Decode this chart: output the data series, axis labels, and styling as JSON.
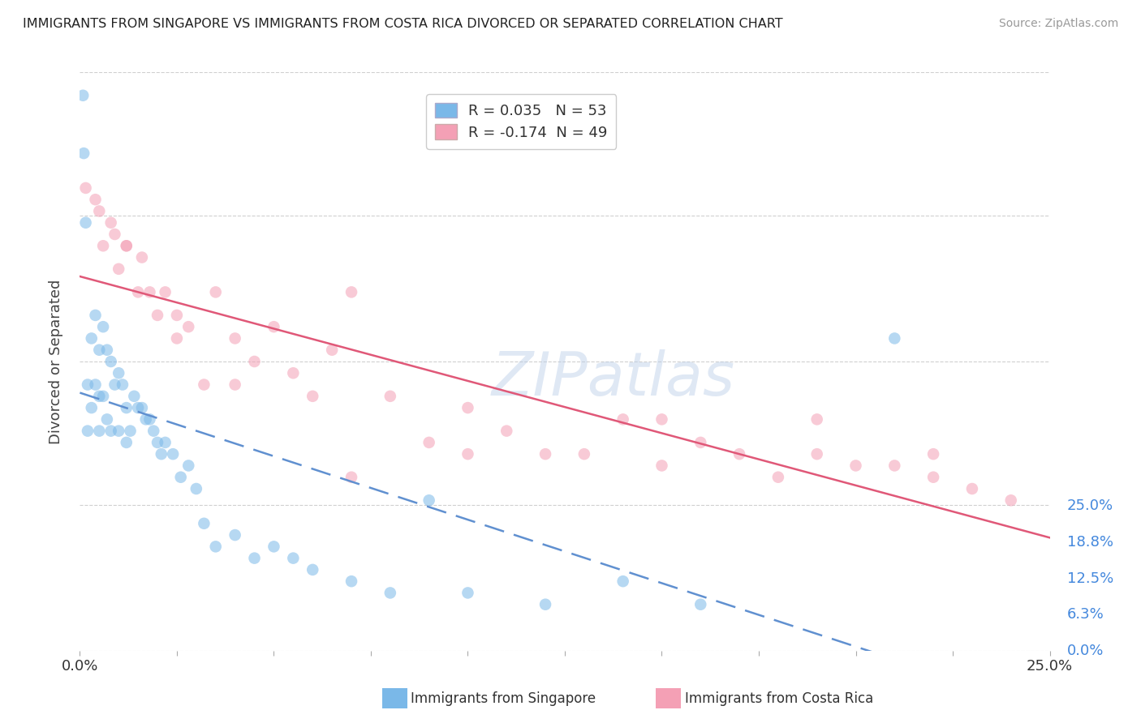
{
  "title": "IMMIGRANTS FROM SINGAPORE VS IMMIGRANTS FROM COSTA RICA DIVORCED OR SEPARATED CORRELATION CHART",
  "source": "Source: ZipAtlas.com",
  "ylabel": "Divorced or Separated",
  "legend_label1": "Immigrants from Singapore",
  "legend_label2": "Immigrants from Costa Rica",
  "R1": 0.035,
  "N1": 53,
  "R2": -0.174,
  "N2": 49,
  "color1": "#7ab8e8",
  "color2": "#f4a0b5",
  "trendline1_color": "#6090d0",
  "trendline2_color": "#e05878",
  "watermark_text": "ZIPatlas",
  "xmin": 0.0,
  "xmax": 0.25,
  "ymin": 0.0,
  "ymax": 0.25,
  "ytick_values": [
    0.0,
    0.063,
    0.125,
    0.188,
    0.25
  ],
  "ytick_labels_right": [
    "0.0%",
    "6.3%",
    "12.5%",
    "18.8%",
    "25.0%"
  ],
  "sg_x": [
    0.0008,
    0.001,
    0.0015,
    0.002,
    0.002,
    0.003,
    0.003,
    0.004,
    0.004,
    0.005,
    0.005,
    0.005,
    0.006,
    0.006,
    0.007,
    0.007,
    0.008,
    0.008,
    0.009,
    0.01,
    0.01,
    0.011,
    0.012,
    0.012,
    0.013,
    0.014,
    0.015,
    0.016,
    0.017,
    0.018,
    0.019,
    0.02,
    0.021,
    0.022,
    0.024,
    0.026,
    0.028,
    0.03,
    0.032,
    0.035,
    0.04,
    0.045,
    0.05,
    0.055,
    0.06,
    0.07,
    0.08,
    0.09,
    0.1,
    0.12,
    0.14,
    0.16,
    0.21
  ],
  "sg_y": [
    0.24,
    0.215,
    0.185,
    0.115,
    0.095,
    0.135,
    0.105,
    0.145,
    0.115,
    0.13,
    0.11,
    0.095,
    0.14,
    0.11,
    0.13,
    0.1,
    0.125,
    0.095,
    0.115,
    0.12,
    0.095,
    0.115,
    0.105,
    0.09,
    0.095,
    0.11,
    0.105,
    0.105,
    0.1,
    0.1,
    0.095,
    0.09,
    0.085,
    0.09,
    0.085,
    0.075,
    0.08,
    0.07,
    0.055,
    0.045,
    0.05,
    0.04,
    0.045,
    0.04,
    0.035,
    0.03,
    0.025,
    0.065,
    0.025,
    0.02,
    0.03,
    0.02,
    0.135
  ],
  "cr_x": [
    0.0015,
    0.004,
    0.006,
    0.008,
    0.009,
    0.01,
    0.012,
    0.015,
    0.016,
    0.018,
    0.02,
    0.022,
    0.025,
    0.028,
    0.032,
    0.035,
    0.04,
    0.045,
    0.05,
    0.055,
    0.06,
    0.065,
    0.07,
    0.08,
    0.09,
    0.1,
    0.11,
    0.12,
    0.13,
    0.14,
    0.15,
    0.16,
    0.17,
    0.18,
    0.19,
    0.2,
    0.21,
    0.22,
    0.23,
    0.24,
    0.005,
    0.012,
    0.025,
    0.04,
    0.07,
    0.1,
    0.15,
    0.19,
    0.22
  ],
  "cr_y": [
    0.2,
    0.195,
    0.175,
    0.185,
    0.18,
    0.165,
    0.175,
    0.155,
    0.17,
    0.155,
    0.145,
    0.155,
    0.135,
    0.14,
    0.115,
    0.155,
    0.135,
    0.125,
    0.14,
    0.12,
    0.11,
    0.13,
    0.155,
    0.11,
    0.09,
    0.105,
    0.095,
    0.085,
    0.085,
    0.1,
    0.1,
    0.09,
    0.085,
    0.075,
    0.1,
    0.08,
    0.08,
    0.075,
    0.07,
    0.065,
    0.19,
    0.175,
    0.145,
    0.115,
    0.075,
    0.085,
    0.08,
    0.085,
    0.085
  ]
}
